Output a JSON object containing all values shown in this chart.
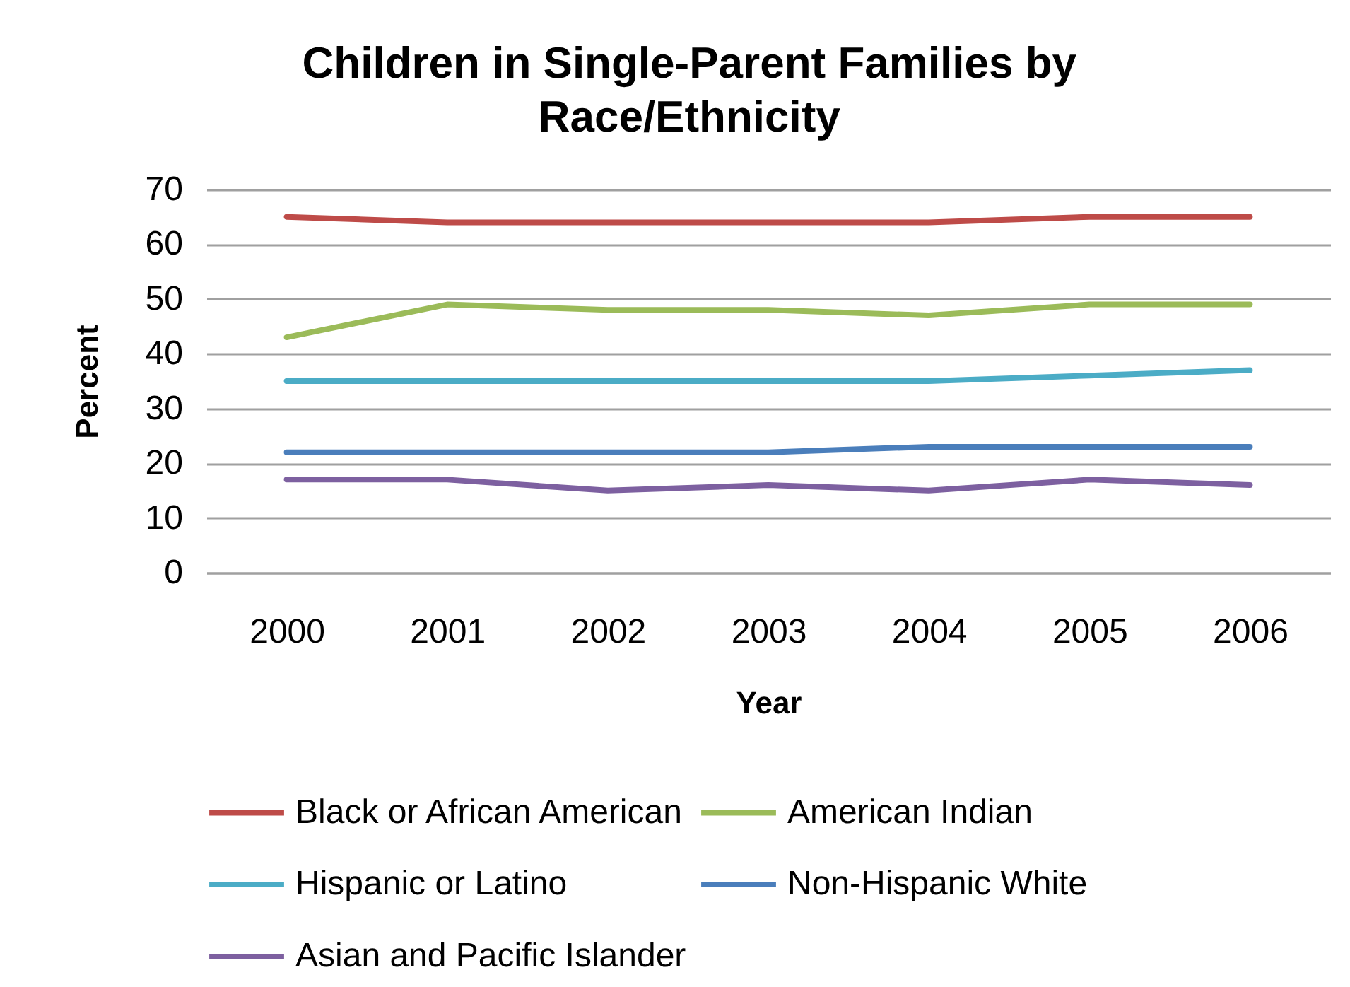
{
  "chart_data": {
    "type": "line",
    "title": "Children in Single-Parent Families by Race/Ethnicity",
    "xlabel": "Year",
    "ylabel": "Percent",
    "categories": [
      "2000",
      "2001",
      "2002",
      "2003",
      "2004",
      "2005",
      "2006"
    ],
    "series": [
      {
        "name": "Black or African American",
        "color": "#be4b48",
        "values": [
          65,
          64,
          64,
          64,
          64,
          65,
          65
        ]
      },
      {
        "name": "American Indian",
        "color": "#9bbb59",
        "values": [
          43,
          49,
          48,
          48,
          47,
          49,
          49
        ]
      },
      {
        "name": "Hispanic or Latino",
        "color": "#4bacc6",
        "values": [
          35,
          35,
          35,
          35,
          35,
          36,
          37
        ]
      },
      {
        "name": "Non-Hispanic White",
        "color": "#4a7ebb",
        "values": [
          22,
          22,
          22,
          22,
          23,
          23,
          23
        ]
      },
      {
        "name": "Asian and Pacific Islander",
        "color": "#7d60a0",
        "values": [
          17,
          17,
          15,
          16,
          15,
          17,
          16
        ]
      }
    ],
    "ylim": [
      0,
      70
    ],
    "yticks": [
      0,
      10,
      20,
      30,
      40,
      50,
      60,
      70
    ],
    "grid": "y",
    "legend": "bottom"
  }
}
